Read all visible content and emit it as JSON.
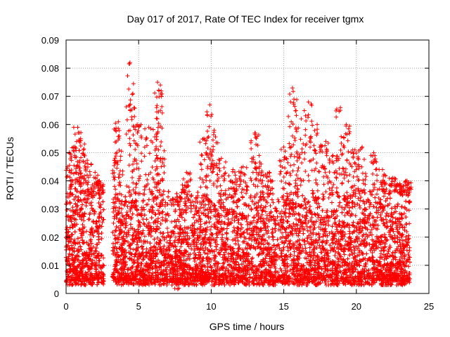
{
  "chart_data": {
    "type": "scatter",
    "title": "Day 017 of 2017, Rate Of TEC Index for receiver tgmx",
    "xlabel": "GPS time / hours",
    "ylabel": "ROTI / TECUs",
    "xlim": [
      0,
      25
    ],
    "ylim": [
      0,
      0.09
    ],
    "x_ticks": [
      0,
      5,
      10,
      15,
      20,
      25
    ],
    "x_tick_labels": [
      "0",
      "5",
      "10",
      "15",
      "20",
      "25"
    ],
    "y_ticks": [
      0,
      0.01,
      0.02,
      0.03,
      0.04,
      0.05,
      0.06,
      0.07,
      0.08,
      0.09
    ],
    "y_tick_labels": [
      "0",
      "0.01",
      "0.02",
      "0.03",
      "0.04",
      "0.05",
      "0.06",
      "0.07",
      "0.08",
      "0.09"
    ],
    "grid": true,
    "marker": "+",
    "marker_color": "#ff0000",
    "series": [
      {
        "name": "ROTI",
        "data_gap_hours": [
          2.6,
          3.2
        ],
        "sampled_points": [
          [
            0.1,
            0.045
          ],
          [
            0.5,
            0.052
          ],
          [
            0.8,
            0.059
          ],
          [
            1.0,
            0.055
          ],
          [
            1.2,
            0.051
          ],
          [
            1.5,
            0.046
          ],
          [
            2.0,
            0.043
          ],
          [
            2.3,
            0.04
          ],
          [
            3.4,
            0.058
          ],
          [
            3.6,
            0.061
          ],
          [
            4.4,
            0.082
          ],
          [
            4.6,
            0.071
          ],
          [
            4.9,
            0.06
          ],
          [
            5.7,
            0.059
          ],
          [
            6.3,
            0.075
          ],
          [
            6.4,
            0.072
          ],
          [
            6.5,
            0.065
          ],
          [
            7.7,
            0.0015
          ],
          [
            8.3,
            0.043
          ],
          [
            9.5,
            0.055
          ],
          [
            9.9,
            0.067
          ],
          [
            10.2,
            0.058
          ],
          [
            10.7,
            0.048
          ],
          [
            11.5,
            0.044
          ],
          [
            12.2,
            0.045
          ],
          [
            13.0,
            0.057
          ],
          [
            13.3,
            0.049
          ],
          [
            14.0,
            0.043
          ],
          [
            15.0,
            0.052
          ],
          [
            15.6,
            0.073
          ],
          [
            15.7,
            0.069
          ],
          [
            16.2,
            0.062
          ],
          [
            16.7,
            0.068
          ],
          [
            17.3,
            0.06
          ],
          [
            17.9,
            0.054
          ],
          [
            18.4,
            0.049
          ],
          [
            18.9,
            0.066
          ],
          [
            19.3,
            0.06
          ],
          [
            19.9,
            0.051
          ],
          [
            20.4,
            0.052
          ],
          [
            21.2,
            0.05
          ],
          [
            21.8,
            0.044
          ],
          [
            22.5,
            0.041
          ],
          [
            23.0,
            0.039
          ],
          [
            23.5,
            0.04
          ]
        ],
        "typical_range": [
          0.004,
          0.035
        ],
        "median": 0.015
      }
    ]
  }
}
